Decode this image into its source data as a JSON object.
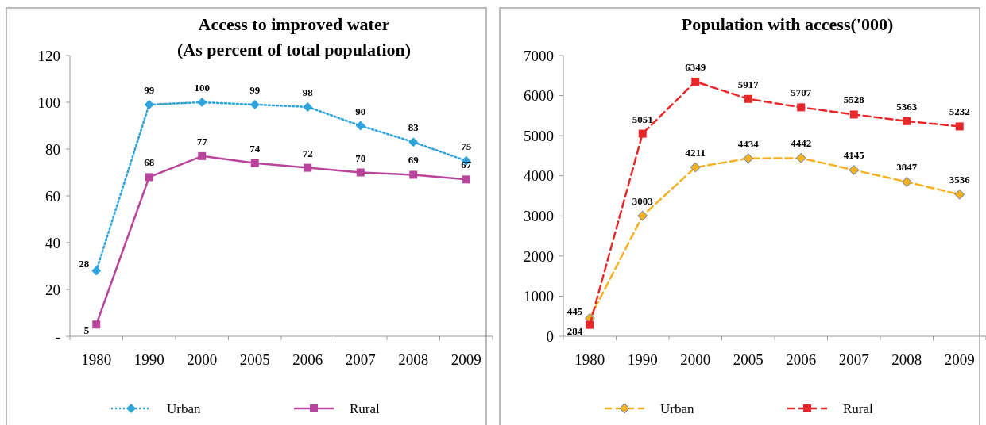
{
  "chart_data": [
    {
      "type": "line",
      "title": "Access to improved water\n(As percent of total population)",
      "categories": [
        "1980",
        "1990",
        "2000",
        "2005",
        "2006",
        "2007",
        "2008",
        "2009"
      ],
      "ylim": [
        0,
        120
      ],
      "yticks": [
        {
          "value": 0,
          "label": "-"
        },
        20,
        40,
        60,
        80,
        100,
        120
      ],
      "data_labels": true,
      "legend": "bottom",
      "grid": false,
      "series": [
        {
          "name": "Urban",
          "color": "#2ea3dc",
          "marker": "diamond",
          "line_style": "dotted",
          "values": [
            28,
            99,
            100,
            99,
            98,
            90,
            83,
            75
          ]
        },
        {
          "name": "Rural",
          "color": "#b8449c",
          "marker": "square",
          "line_style": "solid",
          "values": [
            5,
            68,
            77,
            74,
            72,
            70,
            69,
            67
          ]
        }
      ]
    },
    {
      "type": "line",
      "title": "Population with access('000)",
      "categories": [
        "1980",
        "1990",
        "2000",
        "2005",
        "2006",
        "2007",
        "2008",
        "2009"
      ],
      "ylim": [
        0,
        7000
      ],
      "yticks": [
        0,
        1000,
        2000,
        3000,
        4000,
        5000,
        6000,
        7000
      ],
      "data_labels": true,
      "legend": "bottom",
      "grid": false,
      "series": [
        {
          "name": "Urban",
          "color": "#f5b120",
          "marker": "diamond",
          "line_style": "dashed",
          "values": [
            445,
            3003,
            4211,
            4434,
            4442,
            4145,
            3847,
            3536
          ]
        },
        {
          "name": "Rural",
          "color": "#e8272a",
          "marker": "square",
          "line_style": "dashed",
          "values": [
            284,
            5051,
            6349,
            5917,
            5707,
            5528,
            5363,
            5232
          ]
        }
      ]
    }
  ]
}
